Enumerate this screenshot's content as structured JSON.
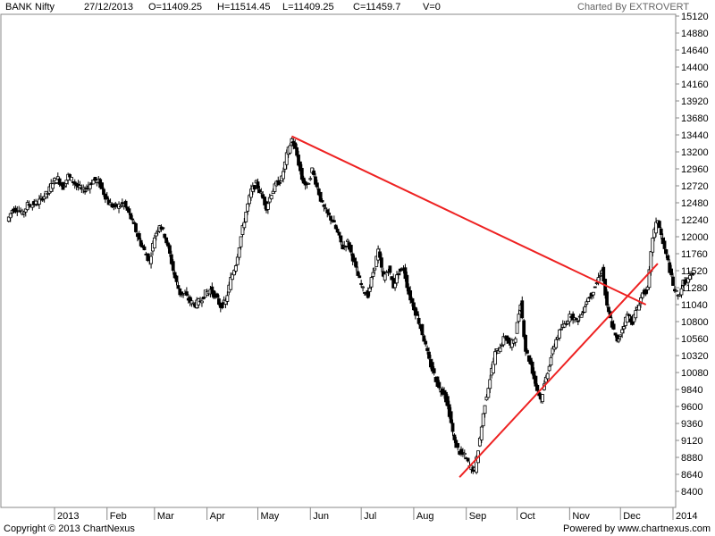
{
  "header": {
    "symbol": "BANK Nifty",
    "date": "27/12/2013",
    "open": "O=11409.25",
    "high": "H=11514.45",
    "low": "L=11409.25",
    "close": "C=11459.7",
    "volume": "V=0",
    "charted_by": "Charted By EXTROVERT"
  },
  "footer": {
    "copyright": "Copyright © 2013 ChartNexus",
    "powered": "Powered by www.chartnexus.com"
  },
  "chart_data": {
    "type": "candlestick",
    "ylim": [
      8280,
      15120
    ],
    "y_ticks": [
      8400,
      8640,
      8880,
      9120,
      9360,
      9600,
      9840,
      10080,
      10320,
      10560,
      10800,
      11040,
      11280,
      11520,
      11760,
      12000,
      12240,
      12480,
      12720,
      12960,
      13200,
      13440,
      13680,
      13920,
      14160,
      14400,
      14640,
      14880,
      15120
    ],
    "x_tick_labels": [
      "2013",
      "Feb",
      "Mar",
      "Apr",
      "May",
      "Jun",
      "Jul",
      "Aug",
      "Sep",
      "Oct",
      "Nov",
      "Dec",
      "2014"
    ],
    "x_tick_days": [
      1,
      32,
      60,
      91,
      121,
      152,
      182,
      213,
      244,
      274,
      305,
      335,
      366
    ],
    "x_range_days": [
      -27,
      375
    ],
    "grid": false,
    "trendlines": [
      {
        "color": "#ee2222",
        "points": [
          [
            2013.37,
            13420
          ],
          [
            2013.96,
            11100
          ]
        ]
      },
      {
        "color": "#ee2222",
        "points": [
          [
            2013.66,
            8580
          ],
          [
            2013.98,
            11580
          ]
        ]
      }
    ],
    "trendline_days": [
      {
        "from": [
          141,
          13420
        ],
        "to": [
          350,
          11040
        ]
      },
      {
        "from": [
          240,
          8600
        ],
        "to": [
          357,
          11620
        ]
      }
    ],
    "close_series": [
      {
        "d": -26,
        "c": 12220
      },
      {
        "d": -23,
        "c": 12380
      },
      {
        "d": -20,
        "c": 12400
      },
      {
        "d": -17,
        "c": 12320
      },
      {
        "d": -14,
        "c": 12450
      },
      {
        "d": -11,
        "c": 12460
      },
      {
        "d": -8,
        "c": 12480
      },
      {
        "d": -5,
        "c": 12560
      },
      {
        "d": -2,
        "c": 12620
      },
      {
        "d": 1,
        "c": 12780
      },
      {
        "d": 4,
        "c": 12820
      },
      {
        "d": 7,
        "c": 12700
      },
      {
        "d": 10,
        "c": 12860
      },
      {
        "d": 13,
        "c": 12780
      },
      {
        "d": 16,
        "c": 12700
      },
      {
        "d": 19,
        "c": 12650
      },
      {
        "d": 22,
        "c": 12720
      },
      {
        "d": 25,
        "c": 12800
      },
      {
        "d": 28,
        "c": 12780
      },
      {
        "d": 31,
        "c": 12620
      },
      {
        "d": 34,
        "c": 12480
      },
      {
        "d": 37,
        "c": 12420
      },
      {
        "d": 40,
        "c": 12440
      },
      {
        "d": 43,
        "c": 12460
      },
      {
        "d": 46,
        "c": 12320
      },
      {
        "d": 49,
        "c": 12150
      },
      {
        "d": 52,
        "c": 11950
      },
      {
        "d": 55,
        "c": 11800
      },
      {
        "d": 58,
        "c": 11650
      },
      {
        "d": 61,
        "c": 12000
      },
      {
        "d": 64,
        "c": 12180
      },
      {
        "d": 67,
        "c": 12020
      },
      {
        "d": 70,
        "c": 11750
      },
      {
        "d": 73,
        "c": 11420
      },
      {
        "d": 76,
        "c": 11200
      },
      {
        "d": 79,
        "c": 11180
      },
      {
        "d": 82,
        "c": 11080
      },
      {
        "d": 85,
        "c": 11040
      },
      {
        "d": 88,
        "c": 11100
      },
      {
        "d": 91,
        "c": 11200
      },
      {
        "d": 94,
        "c": 11250
      },
      {
        "d": 97,
        "c": 11150
      },
      {
        "d": 100,
        "c": 11020
      },
      {
        "d": 103,
        "c": 11080
      },
      {
        "d": 106,
        "c": 11400
      },
      {
        "d": 109,
        "c": 11620
      },
      {
        "d": 112,
        "c": 12000
      },
      {
        "d": 115,
        "c": 12350
      },
      {
        "d": 118,
        "c": 12650
      },
      {
        "d": 121,
        "c": 12750
      },
      {
        "d": 124,
        "c": 12600
      },
      {
        "d": 127,
        "c": 12420
      },
      {
        "d": 130,
        "c": 12620
      },
      {
        "d": 133,
        "c": 12750
      },
      {
        "d": 136,
        "c": 12820
      },
      {
        "d": 139,
        "c": 13150
      },
      {
        "d": 142,
        "c": 13380
      },
      {
        "d": 145,
        "c": 13150
      },
      {
        "d": 148,
        "c": 12820
      },
      {
        "d": 151,
        "c": 12700
      },
      {
        "d": 154,
        "c": 12950
      },
      {
        "d": 157,
        "c": 12700
      },
      {
        "d": 160,
        "c": 12450
      },
      {
        "d": 163,
        "c": 12320
      },
      {
        "d": 166,
        "c": 12230
      },
      {
        "d": 169,
        "c": 12050
      },
      {
        "d": 172,
        "c": 11850
      },
      {
        "d": 175,
        "c": 11920
      },
      {
        "d": 178,
        "c": 11700
      },
      {
        "d": 181,
        "c": 11450
      },
      {
        "d": 184,
        "c": 11250
      },
      {
        "d": 187,
        "c": 11180
      },
      {
        "d": 190,
        "c": 11500
      },
      {
        "d": 193,
        "c": 11800
      },
      {
        "d": 196,
        "c": 11420
      },
      {
        "d": 199,
        "c": 11550
      },
      {
        "d": 202,
        "c": 11300
      },
      {
        "d": 205,
        "c": 11500
      },
      {
        "d": 208,
        "c": 11550
      },
      {
        "d": 211,
        "c": 11200
      },
      {
        "d": 214,
        "c": 11000
      },
      {
        "d": 217,
        "c": 10800
      },
      {
        "d": 220,
        "c": 10550
      },
      {
        "d": 223,
        "c": 10250
      },
      {
        "d": 226,
        "c": 10050
      },
      {
        "d": 229,
        "c": 9850
      },
      {
        "d": 232,
        "c": 9800
      },
      {
        "d": 235,
        "c": 9500
      },
      {
        "d": 238,
        "c": 9100
      },
      {
        "d": 241,
        "c": 8950
      },
      {
        "d": 244,
        "c": 8900
      },
      {
        "d": 247,
        "c": 8750
      },
      {
        "d": 250,
        "c": 8700
      },
      {
        "d": 253,
        "c": 9150
      },
      {
        "d": 256,
        "c": 9650
      },
      {
        "d": 259,
        "c": 10000
      },
      {
        "d": 262,
        "c": 10350
      },
      {
        "d": 265,
        "c": 10450
      },
      {
        "d": 268,
        "c": 10600
      },
      {
        "d": 271,
        "c": 10450
      },
      {
        "d": 274,
        "c": 10600
      },
      {
        "d": 277,
        "c": 11080
      },
      {
        "d": 280,
        "c": 10400
      },
      {
        "d": 283,
        "c": 10200
      },
      {
        "d": 286,
        "c": 9900
      },
      {
        "d": 289,
        "c": 9700
      },
      {
        "d": 292,
        "c": 10000
      },
      {
        "d": 295,
        "c": 10300
      },
      {
        "d": 298,
        "c": 10550
      },
      {
        "d": 301,
        "c": 10700
      },
      {
        "d": 304,
        "c": 10800
      },
      {
        "d": 307,
        "c": 10900
      },
      {
        "d": 310,
        "c": 10800
      },
      {
        "d": 313,
        "c": 10900
      },
      {
        "d": 316,
        "c": 11100
      },
      {
        "d": 319,
        "c": 11200
      },
      {
        "d": 322,
        "c": 11350
      },
      {
        "d": 325,
        "c": 11550
      },
      {
        "d": 328,
        "c": 11000
      },
      {
        "d": 331,
        "c": 10750
      },
      {
        "d": 334,
        "c": 10500
      },
      {
        "d": 337,
        "c": 10700
      },
      {
        "d": 340,
        "c": 10900
      },
      {
        "d": 343,
        "c": 10800
      },
      {
        "d": 346,
        "c": 11000
      },
      {
        "d": 349,
        "c": 11200
      },
      {
        "d": 352,
        "c": 11250
      },
      {
        "d": 355,
        "c": 12000
      },
      {
        "d": 358,
        "c": 12250
      },
      {
        "d": 361,
        "c": 11900
      },
      {
        "d": 364,
        "c": 11650
      },
      {
        "d": 367,
        "c": 11300
      },
      {
        "d": 370,
        "c": 11150
      },
      {
        "d": 373,
        "c": 11350
      },
      {
        "d": 376,
        "c": 11400
      },
      {
        "d": 379,
        "c": 11460
      }
    ]
  }
}
